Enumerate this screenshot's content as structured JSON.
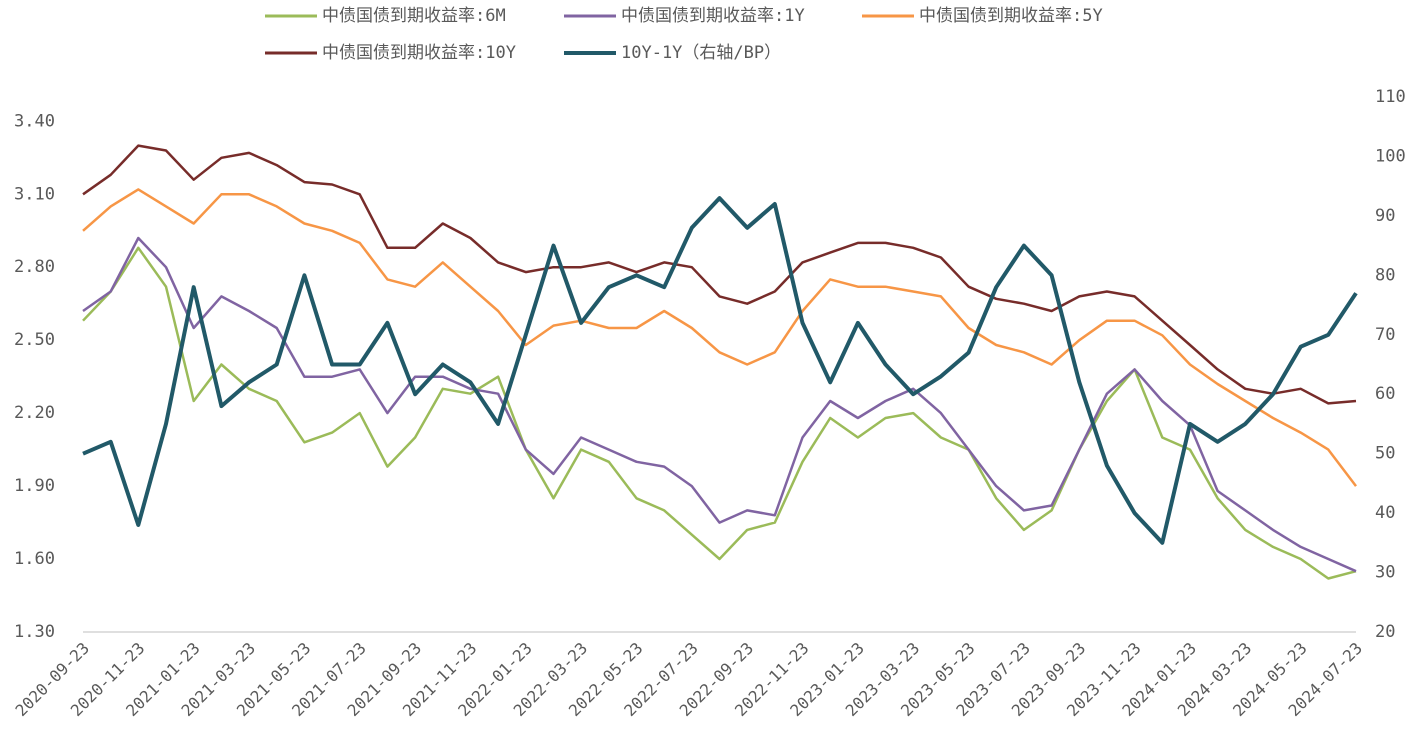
{
  "chart_data": {
    "type": "line",
    "categories": [
      "2020-09-23",
      null,
      "2020-11-23",
      null,
      "2021-01-23",
      null,
      "2021-03-23",
      null,
      "2021-05-23",
      null,
      "2021-07-23",
      null,
      "2021-09-23",
      null,
      "2021-11-23",
      null,
      "2022-01-23",
      null,
      "2022-03-23",
      null,
      "2022-05-23",
      null,
      "2022-07-23",
      null,
      "2022-09-23",
      null,
      "2022-11-23",
      null,
      "2023-01-23",
      null,
      "2023-03-23",
      null,
      "2023-05-23",
      null,
      "2023-07-23",
      null,
      "2023-09-23",
      null,
      "2023-11-23",
      null,
      "2024-01-23",
      null,
      "2024-03-23",
      null,
      "2024-05-23",
      null,
      "2024-07-23"
    ],
    "series": [
      {
        "name": "中债国债到期收益率:6M",
        "color": "#9bbb59",
        "values": [
          2.58,
          2.7,
          2.88,
          2.72,
          2.25,
          2.4,
          2.3,
          2.25,
          2.08,
          2.12,
          2.2,
          1.98,
          2.1,
          2.3,
          2.28,
          2.35,
          2.05,
          1.85,
          2.05,
          2.0,
          1.85,
          1.8,
          1.7,
          1.6,
          1.72,
          1.75,
          2.0,
          2.18,
          2.1,
          2.18,
          2.2,
          2.1,
          2.05,
          1.85,
          1.72,
          1.8,
          2.05,
          2.25,
          2.38,
          2.1,
          2.05,
          1.85,
          1.72,
          1.65,
          1.6,
          1.52,
          1.55
        ]
      },
      {
        "name": "中债国债到期收益率:1Y",
        "color": "#8064a2",
        "values": [
          2.62,
          2.7,
          2.92,
          2.8,
          2.55,
          2.68,
          2.62,
          2.55,
          2.35,
          2.35,
          2.38,
          2.2,
          2.35,
          2.35,
          2.3,
          2.28,
          2.05,
          1.95,
          2.1,
          2.05,
          2.0,
          1.98,
          1.9,
          1.75,
          1.8,
          1.78,
          2.1,
          2.25,
          2.18,
          2.25,
          2.3,
          2.2,
          2.05,
          1.9,
          1.8,
          1.82,
          2.05,
          2.28,
          2.38,
          2.25,
          2.15,
          1.88,
          1.8,
          1.72,
          1.65,
          1.6,
          1.55
        ]
      },
      {
        "name": "中债国债到期收益率:5Y",
        "color": "#f79646",
        "values": [
          2.95,
          3.05,
          3.12,
          3.05,
          2.98,
          3.1,
          3.1,
          3.05,
          2.98,
          2.95,
          2.9,
          2.75,
          2.72,
          2.82,
          2.72,
          2.62,
          2.48,
          2.56,
          2.58,
          2.55,
          2.55,
          2.62,
          2.55,
          2.45,
          2.4,
          2.45,
          2.62,
          2.75,
          2.72,
          2.72,
          2.7,
          2.68,
          2.55,
          2.48,
          2.45,
          2.4,
          2.5,
          2.58,
          2.58,
          2.52,
          2.4,
          2.32,
          2.25,
          2.18,
          2.12,
          2.05,
          1.9
        ]
      },
      {
        "name": "中债国债到期收益率:10Y",
        "color": "#772c2a",
        "values": [
          3.1,
          3.18,
          3.3,
          3.28,
          3.16,
          3.25,
          3.27,
          3.22,
          3.15,
          3.14,
          3.1,
          2.88,
          2.88,
          2.98,
          2.92,
          2.82,
          2.78,
          2.8,
          2.8,
          2.82,
          2.78,
          2.82,
          2.8,
          2.68,
          2.65,
          2.7,
          2.82,
          2.86,
          2.9,
          2.9,
          2.88,
          2.84,
          2.72,
          2.67,
          2.65,
          2.62,
          2.68,
          2.7,
          2.68,
          2.58,
          2.48,
          2.38,
          2.3,
          2.28,
          2.3,
          2.24,
          2.25
        ]
      },
      {
        "name": "10Y-1Y（右轴/BP）",
        "color": "#215968",
        "axis": "y2",
        "values": [
          50,
          52,
          38,
          55,
          78,
          58,
          62,
          65,
          80,
          65,
          65,
          72,
          60,
          65,
          62,
          55,
          70,
          85,
          72,
          78,
          80,
          78,
          88,
          93,
          88,
          92,
          72,
          62,
          72,
          65,
          60,
          63,
          67,
          78,
          85,
          80,
          62,
          48,
          40,
          35,
          55,
          52,
          55,
          60,
          68,
          70,
          77
        ]
      }
    ],
    "ylim": [
      1.3,
      3.5
    ],
    "yticks": [
      {
        "value": 1.3,
        "label": "1.30"
      },
      {
        "value": 1.6,
        "label": "1.60"
      },
      {
        "value": 1.9,
        "label": "1.90"
      },
      {
        "value": 2.2,
        "label": "2.20"
      },
      {
        "value": 2.5,
        "label": "2.50"
      },
      {
        "value": 2.8,
        "label": "2.80"
      },
      {
        "value": 3.1,
        "label": "3.10"
      },
      {
        "value": 3.4,
        "label": "3.40"
      }
    ],
    "y2lim": [
      20,
      110
    ],
    "y2ticks": [
      20,
      30,
      40,
      50,
      60,
      70,
      80,
      90,
      100,
      110
    ],
    "grid": false
  }
}
